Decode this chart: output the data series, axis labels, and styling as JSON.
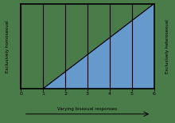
{
  "title": "",
  "xlabel": "Varying bisexual responses",
  "ylabel_left": "Exclusively homosexual",
  "ylabel_right": "Exclusively heterosexual",
  "xticks": [
    0,
    1,
    2,
    3,
    4,
    5,
    6
  ],
  "xlim": [
    0,
    6
  ],
  "ylim": [
    0,
    6
  ],
  "fill_color": "#6699cc",
  "fill_alpha": 1.0,
  "line_color": "#000000",
  "background_color": "#4a7c4a",
  "figsize": [
    2.2,
    1.54
  ],
  "dpi": 100,
  "spine_linewidth": 1.2,
  "grid_linewidth": 0.8
}
